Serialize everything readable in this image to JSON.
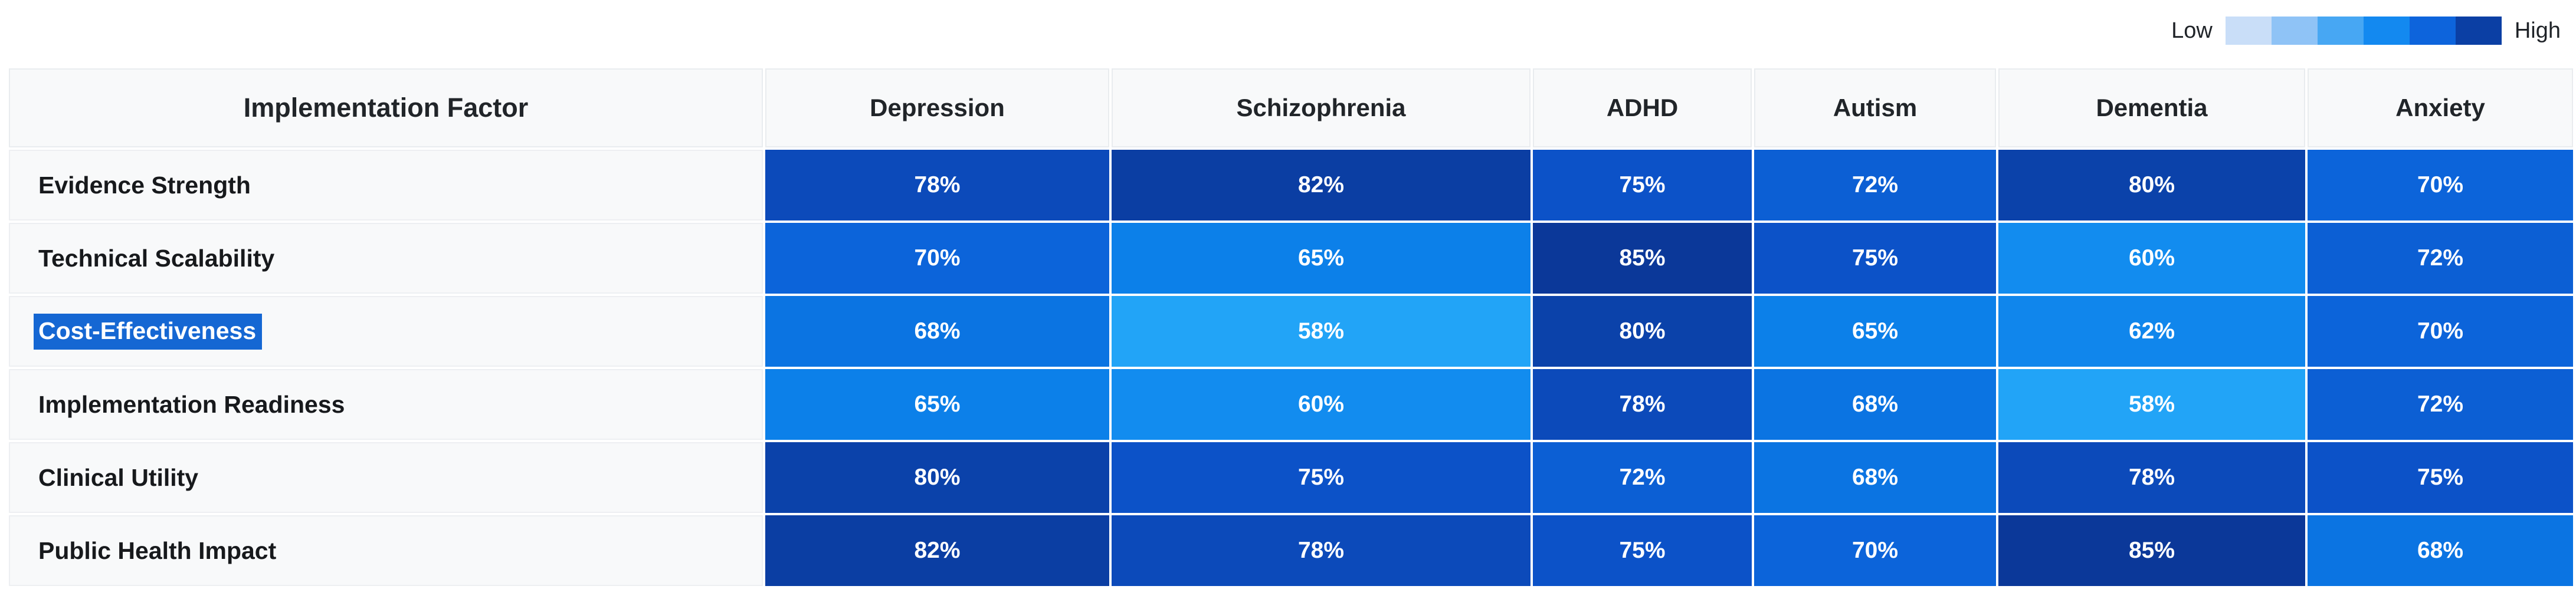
{
  "legend": {
    "low_label": "Low",
    "high_label": "High",
    "swatches": [
      "#C9DEF8",
      "#8FC3F6",
      "#47A7F3",
      "#1389F0",
      "#0D64DC",
      "#0B3FA4"
    ]
  },
  "table": {
    "factor_header": "Implementation Factor",
    "columns": [
      "Depression",
      "Schizophrenia",
      "ADHD",
      "Autism",
      "Dementia",
      "Anxiety"
    ],
    "rows": [
      {
        "label": "Evidence Strength",
        "selected": false,
        "values": [
          78,
          82,
          75,
          72,
          80,
          70
        ]
      },
      {
        "label": "Technical Scalability",
        "selected": false,
        "values": [
          70,
          65,
          85,
          75,
          60,
          72
        ]
      },
      {
        "label": "Cost-Effectiveness",
        "selected": true,
        "values": [
          68,
          58,
          80,
          65,
          62,
          70
        ]
      },
      {
        "label": "Implementation Readiness",
        "selected": false,
        "values": [
          65,
          60,
          78,
          68,
          58,
          72
        ]
      },
      {
        "label": "Clinical Utility",
        "selected": false,
        "values": [
          80,
          75,
          72,
          68,
          78,
          75
        ]
      },
      {
        "label": "Public Health Impact",
        "selected": false,
        "values": [
          82,
          78,
          75,
          70,
          85,
          68
        ]
      }
    ],
    "value_suffix": "%"
  },
  "colors": {
    "value_colors": {
      "58": "#22A4F7",
      "60": "#128CEF",
      "62": "#1086EC",
      "65": "#0C80E9",
      "68": "#0B74E2",
      "70": "#0C64DA",
      "72": "#0C5FD4",
      "75": "#0C52C8",
      "78": "#0C4ABA",
      "80": "#0B42AA",
      "82": "#0B3EA3",
      "85": "#0B3899"
    },
    "cell_text": "#FFFFFF",
    "selection_bg": "#1567D3",
    "selection_text": "#FFFFFF",
    "header_bg": "#F8F9FA",
    "label_bg": "#F8F9FA",
    "border": "#E9ECEF"
  },
  "chart_data": {
    "type": "heatmap",
    "title": "",
    "row_axis_label": "Implementation Factor",
    "rows": [
      "Evidence Strength",
      "Technical Scalability",
      "Cost-Effectiveness",
      "Implementation Readiness",
      "Clinical Utility",
      "Public Health Impact"
    ],
    "columns": [
      "Depression",
      "Schizophrenia",
      "ADHD",
      "Autism",
      "Dementia",
      "Anxiety"
    ],
    "values": [
      [
        78,
        82,
        75,
        72,
        80,
        70
      ],
      [
        70,
        65,
        85,
        75,
        60,
        72
      ],
      [
        68,
        58,
        80,
        65,
        62,
        70
      ],
      [
        65,
        60,
        78,
        68,
        58,
        72
      ],
      [
        80,
        75,
        72,
        68,
        78,
        75
      ],
      [
        82,
        78,
        75,
        70,
        85,
        68
      ]
    ],
    "unit": "%",
    "value_range": [
      58,
      85
    ],
    "legend": {
      "position": "top-right",
      "low": "Low",
      "high": "High"
    },
    "palette_low_to_high": [
      "#C9DEF8",
      "#8FC3F6",
      "#47A7F3",
      "#1389F0",
      "#0D64DC",
      "#0B3FA4"
    ]
  }
}
